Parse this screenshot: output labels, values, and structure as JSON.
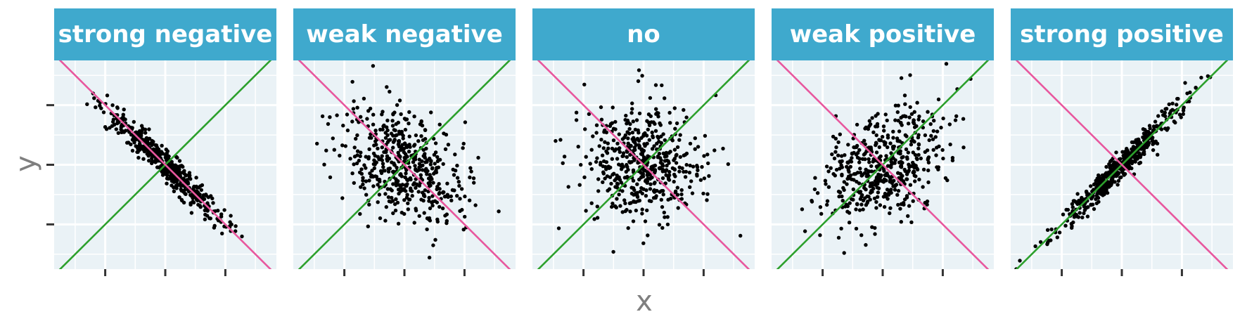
{
  "chart_data": {
    "type": "scatter",
    "xlabel": "x",
    "ylabel": "y",
    "grid": true,
    "xlim": [
      -3.7,
      3.7
    ],
    "ylim": [
      -3.5,
      3.5
    ],
    "x_ticks": [
      -2,
      0,
      2
    ],
    "y_ticks": [
      -2,
      0,
      2
    ],
    "tick_labels_shown": false,
    "colors": {
      "strip_bg": "#3fa9cd",
      "strip_text": "#ffffff",
      "panel_bg": "#eaf2f6",
      "grid": "#ffffff",
      "points": "#000000",
      "positive_line": "#2ca02c",
      "negative_line": "#e8579e",
      "axis_text": "#7f7f7f"
    },
    "reference_lines": [
      {
        "color": "green",
        "slope": 1,
        "intercept": 0
      },
      {
        "color": "pink",
        "slope": -1,
        "intercept": 0
      }
    ],
    "panels": [
      {
        "label": "strong negative",
        "correlation": -0.97,
        "n": 500
      },
      {
        "label": "weak negative",
        "correlation": -0.4,
        "n": 500
      },
      {
        "label": "no",
        "correlation": 0.0,
        "n": 500
      },
      {
        "label": "weak positive",
        "correlation": 0.4,
        "n": 500
      },
      {
        "label": "strong positive",
        "correlation": 0.97,
        "n": 500
      }
    ]
  }
}
